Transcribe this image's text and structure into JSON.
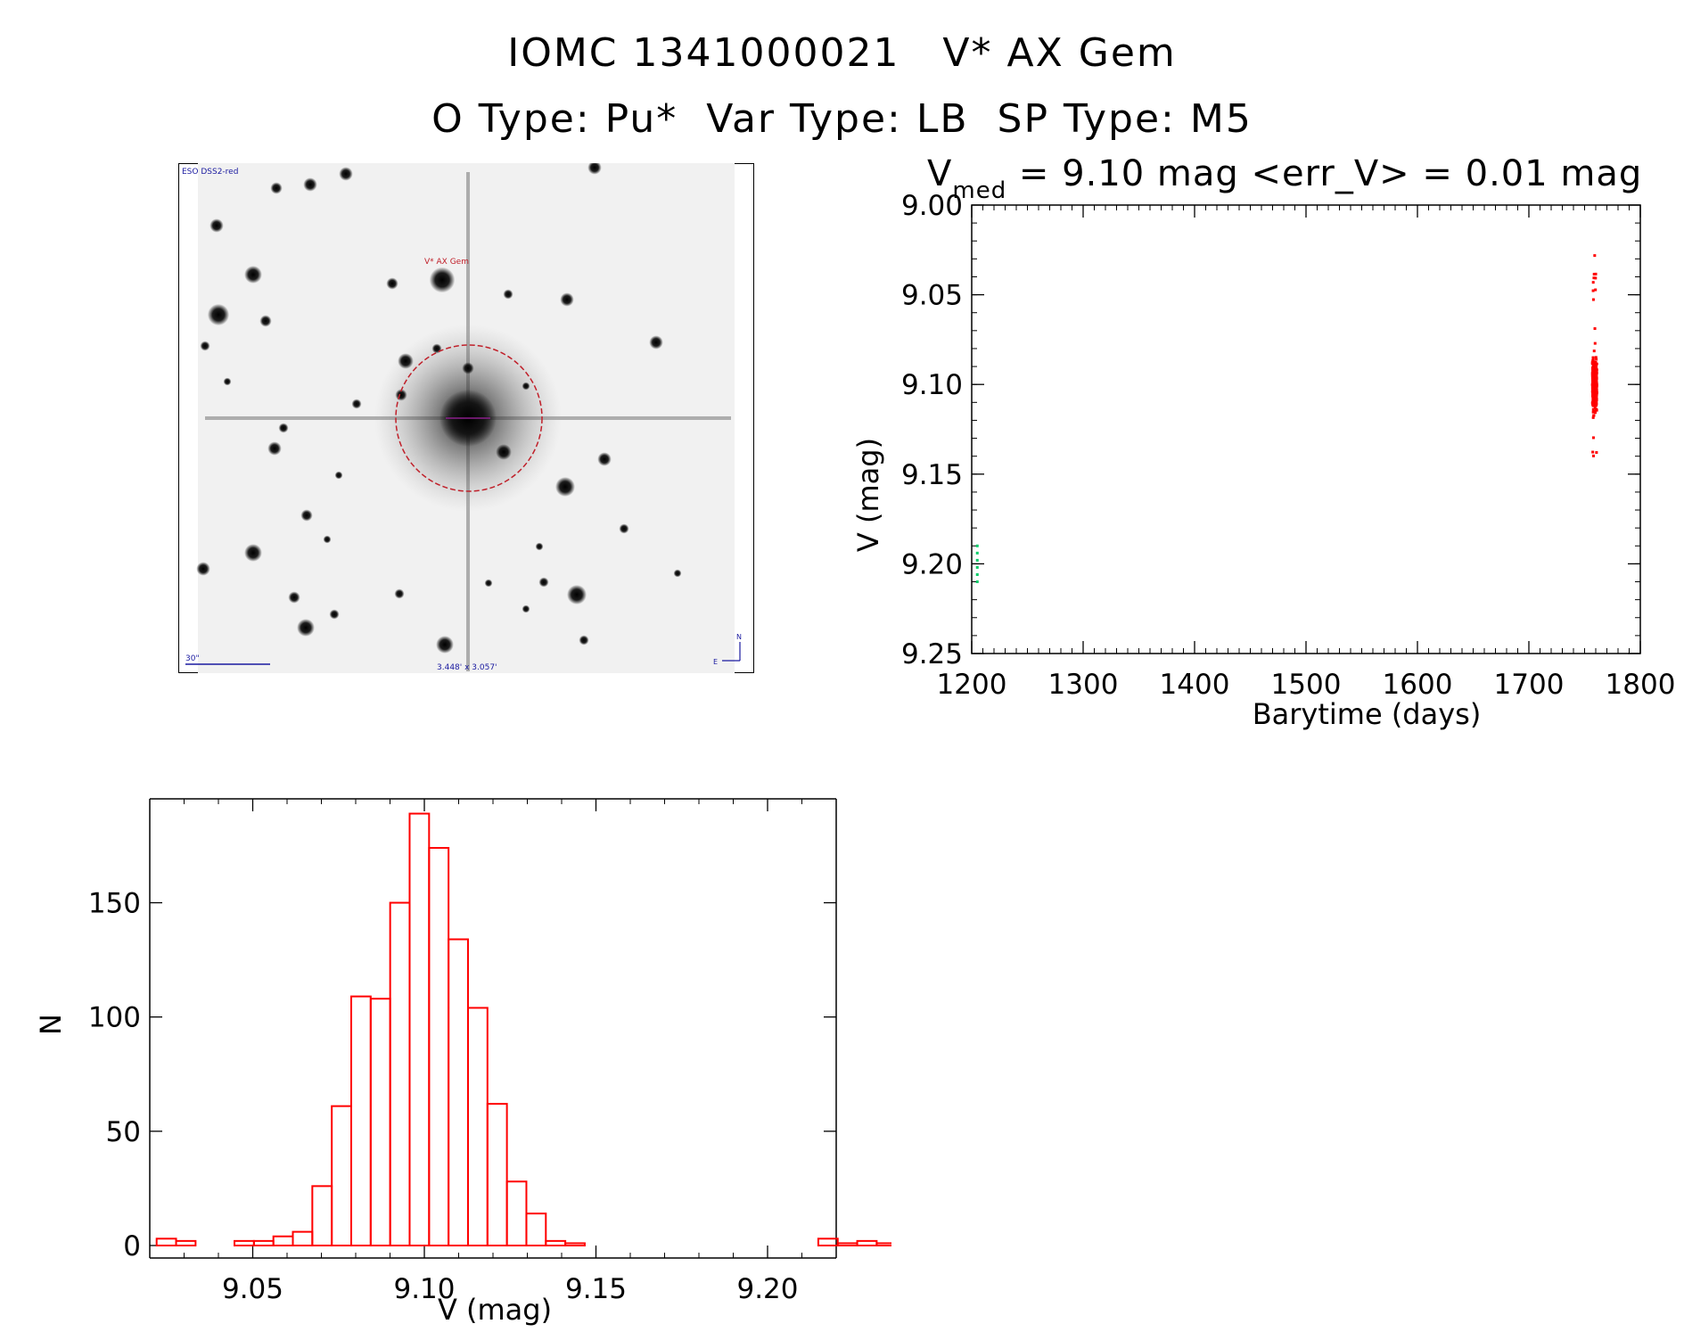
{
  "header": {
    "line1": "IOMC 1341000021   V* AX Gem",
    "line2": "O Type: Pu*  Var Type: LB  SP Type: M5"
  },
  "sky_image": {
    "survey_label": "ESO DSS2-red",
    "target_label": "V* AX Gem",
    "scale_label": "30\"",
    "fov_label": "3.448' x 3.057'",
    "north_label": "N",
    "east_label": "E",
    "colors": {
      "circle": "#c0202a",
      "annotation": "#1a1aa0"
    }
  },
  "chart_data": [
    {
      "type": "scatter",
      "title_prefix": "V",
      "title_subscript": "med",
      "title_rest": " = 9.10 mag <err_V> = 0.01 mag",
      "xlabel": "Barytime (days)",
      "ylabel": "V (mag)",
      "xlim": [
        1200,
        1800
      ],
      "ylim": [
        9.25,
        9.0
      ],
      "y_inverted": true,
      "x_ticks": [
        1200,
        1300,
        1400,
        1500,
        1600,
        1700,
        1800
      ],
      "y_ticks": [
        "9.00",
        "9.05",
        "9.10",
        "9.15",
        "9.20",
        "9.25"
      ],
      "series": [
        {
          "color": "#ff0000",
          "x_center": 1759,
          "y_min": 9.022,
          "y_max": 9.14,
          "y_median": 9.1,
          "n_points": 1050
        },
        {
          "color": "#00cc66",
          "x_center": 1205,
          "y_min": 9.19,
          "y_max": 9.21,
          "n_points": 6
        }
      ]
    },
    {
      "type": "bar",
      "style": "step-histogram",
      "xlabel": "V (mag)",
      "ylabel": "N",
      "xlim": [
        9.02,
        9.22
      ],
      "ylim": [
        0,
        190
      ],
      "x_ticks": [
        "9.05",
        "9.10",
        "9.15",
        "9.20"
      ],
      "y_ticks": [
        "0",
        "50",
        "100",
        "150"
      ],
      "bin_start": 9.022,
      "bin_width": 0.00567,
      "counts": [
        3,
        2,
        0,
        0,
        2,
        2,
        4,
        6,
        26,
        61,
        109,
        108,
        150,
        189,
        174,
        134,
        104,
        62,
        28,
        14,
        2,
        1,
        0,
        0,
        0,
        0,
        0,
        0,
        0,
        0,
        0,
        0,
        0,
        0,
        3,
        1,
        2,
        1
      ],
      "color": "#ff0000"
    }
  ]
}
